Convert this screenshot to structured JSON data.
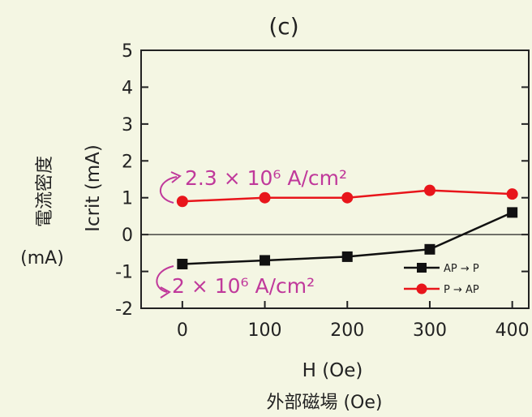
{
  "chart_data": {
    "type": "line",
    "panel_label": "(c)",
    "xlabel": "H (Oe)",
    "xlabel_jp": "外部磁場 (Oe)",
    "ylabel": "Icrit (mA)",
    "ylabel_jp": "電流密度",
    "ylabel_jp_unit": "(mA)",
    "x": [
      0,
      100,
      200,
      300,
      400
    ],
    "xticks": [
      "0",
      "100",
      "200",
      "300",
      "400"
    ],
    "yticks": [
      "5",
      "4",
      "3",
      "2",
      "1",
      "0",
      "-1",
      "-2"
    ],
    "xlim": [
      -50,
      420
    ],
    "ylim": [
      -2,
      5
    ],
    "zero_line": true,
    "grid": false,
    "legend_position": "right, inside plot below zero line",
    "series": [
      {
        "name": "AP → P",
        "color": "#111111",
        "marker": "square",
        "values": [
          -0.8,
          -0.7,
          -0.6,
          -0.4,
          0.6
        ]
      },
      {
        "name": "P → AP",
        "color": "#e8151b",
        "marker": "circle",
        "values": [
          0.9,
          1.0,
          1.0,
          1.2,
          1.1
        ]
      }
    ],
    "annotations": [
      {
        "text": "2.3 × 10⁶ A/cm²",
        "color": "#c0399b",
        "target_series": "P → AP"
      },
      {
        "text": "2 × 10⁶ A/cm²",
        "color": "#c0399b",
        "target_series": "AP → P"
      }
    ]
  }
}
